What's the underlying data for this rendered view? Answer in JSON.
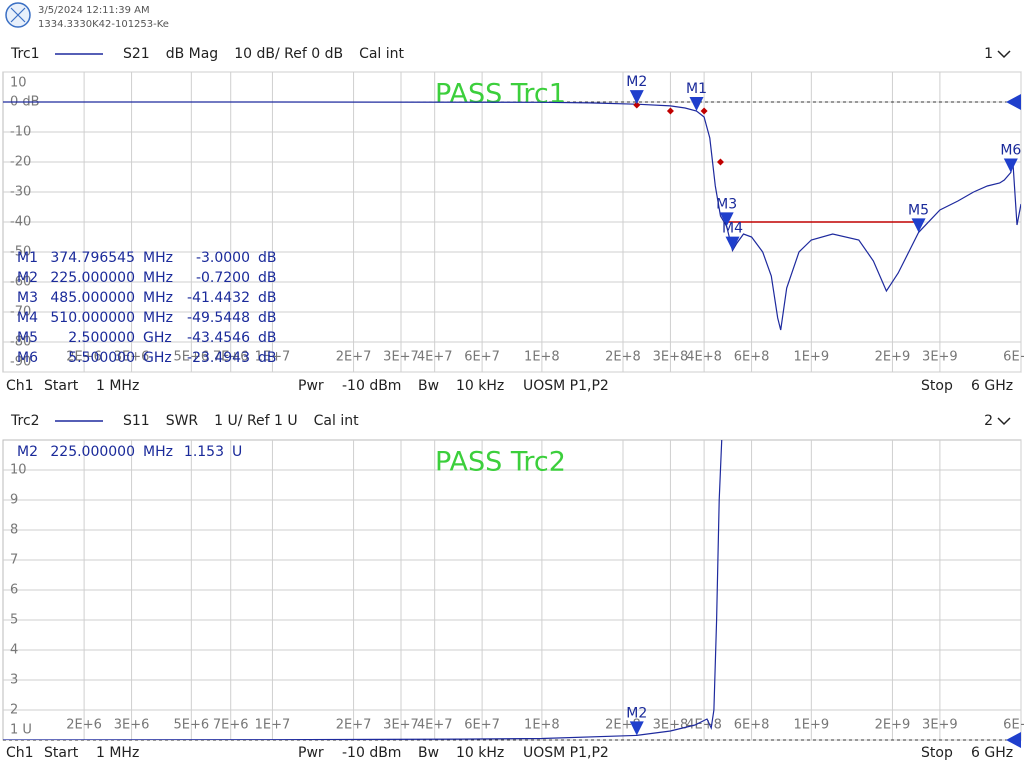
{
  "header": {
    "date": "3/5/2024 12:11:39 AM",
    "serial": "1334.3330K42-101253-Ke"
  },
  "chart_data": [
    {
      "type": "line",
      "parameter": "S21",
      "format": "dB Mag",
      "scale": "10 dB/ Ref 0 dB",
      "cal": "Cal int",
      "window": "1",
      "pass_label": "PASS  Trc1",
      "log_x": true,
      "grid": true,
      "ref_value": 0,
      "xlim": [
        1000000,
        6000000000
      ],
      "xticks": [
        {
          "value": 2000000,
          "label": "2E+6"
        },
        {
          "value": 3000000,
          "label": "3E+6"
        },
        {
          "value": 5000000,
          "label": "5E+6"
        },
        {
          "value": 7000000,
          "label": "7E+6"
        },
        {
          "value": 10000000,
          "label": "1E+7"
        },
        {
          "value": 20000000,
          "label": "2E+7"
        },
        {
          "value": 30000000,
          "label": "3E+7"
        },
        {
          "value": 40000000,
          "label": "4E+7"
        },
        {
          "value": 60000000,
          "label": "6E+7"
        },
        {
          "value": 100000000,
          "label": "1E+8"
        },
        {
          "value": 200000000,
          "label": "2E+8"
        },
        {
          "value": 300000000,
          "label": "3E+8"
        },
        {
          "value": 400000000,
          "label": "4E+8"
        },
        {
          "value": 600000000,
          "label": "6E+8"
        },
        {
          "value": 1000000000,
          "label": "1E+9"
        },
        {
          "value": 2000000000,
          "label": "2E+9"
        },
        {
          "value": 3000000000,
          "label": "3E+9"
        },
        {
          "value": 6000000000,
          "label": "6E+9"
        }
      ],
      "ylim": [
        -90,
        10
      ],
      "yticks": [
        10,
        {
          "value": 0,
          "label": "0 dB"
        },
        -10,
        -20,
        -30,
        -40,
        -50,
        -60,
        -70,
        -80,
        -90
      ],
      "series": [
        {
          "name": "Trc1",
          "color": "#1e2a9e",
          "x": [
            1000000,
            10000000,
            100000000,
            150000000,
            225000000,
            300000000,
            340000000,
            374796545,
            400000000,
            420000000,
            440000000,
            460000000,
            485000000,
            510000000,
            530000000,
            560000000,
            600000000,
            660000000,
            710000000,
            750000000,
            770000000,
            810000000,
            900000000,
            1000000000,
            1200000000,
            1500000000,
            1700000000,
            1900000000,
            2100000000,
            2500000000,
            3000000000,
            3500000000,
            4000000000,
            4500000000,
            5000000000,
            5200000000,
            5500000000,
            5600000000,
            5800000000,
            6000000000
          ],
          "values": [
            0,
            0,
            -0.1,
            -0.3,
            -0.72,
            -1.3,
            -2,
            -3,
            -5,
            -12,
            -28,
            -38,
            -41.44,
            -49.54,
            -47,
            -44,
            -45,
            -50,
            -58,
            -72,
            -76,
            -62,
            -50,
            -46,
            -44,
            -46,
            -53,
            -63,
            -57,
            -43.45,
            -36,
            -33,
            -30,
            -28,
            -27,
            -26,
            -23.49,
            -20,
            -41,
            -34
          ]
        }
      ],
      "limit_line": {
        "color": "#c00000",
        "x": [
          485000000,
          2500000000
        ],
        "values": [
          -40,
          -40
        ]
      },
      "limit_points": {
        "color": "#c00000",
        "x": [
          225000000,
          300000000,
          400000000,
          460000000
        ],
        "values": [
          -1,
          -3,
          -3,
          -20
        ]
      },
      "markers": [
        {
          "label": "M1",
          "x": 374796545,
          "y": -3
        },
        {
          "label": "M2",
          "x": 225000000,
          "y": -0.72
        },
        {
          "label": "M3",
          "x": 485000000,
          "y": -41.4432
        },
        {
          "label": "M4",
          "x": 510000000,
          "y": -49.5448
        },
        {
          "label": "M5",
          "x": 2500000000,
          "y": -43.4546
        },
        {
          "label": "M6",
          "x": 5500000000,
          "y": -23.4943
        }
      ],
      "marker_table": [
        [
          "M1",
          "374.796545",
          "MHz",
          "-3.0000",
          "dB"
        ],
        [
          "M2",
          "225.000000",
          "MHz",
          "-0.7200",
          "dB"
        ],
        [
          "M3",
          "485.000000",
          "MHz",
          "-41.4432",
          "dB"
        ],
        [
          "M4",
          "510.000000",
          "MHz",
          "-49.5448",
          "dB"
        ],
        [
          "M5",
          "2.500000",
          "GHz",
          "-43.4546",
          "dB"
        ],
        [
          "M6",
          "5.500000",
          "GHz",
          "-23.4943",
          "dB"
        ]
      ],
      "status": [
        "Ch1",
        "Start",
        "1 MHz",
        "Pwr",
        "-10 dBm",
        "Bw",
        "10 kHz",
        "UOSM P1,P2",
        "Stop",
        "6 GHz"
      ]
    },
    {
      "type": "line",
      "parameter": "S11",
      "format": "SWR",
      "scale": "1 U/ Ref 1 U",
      "cal": "Cal int",
      "window": "2",
      "pass_label": "PASS  Trc2",
      "log_x": true,
      "grid": true,
      "ref_value": 1,
      "xlim": [
        1000000,
        6000000000
      ],
      "xticks": [
        {
          "value": 2000000,
          "label": "2E+6"
        },
        {
          "value": 3000000,
          "label": "3E+6"
        },
        {
          "value": 5000000,
          "label": "5E+6"
        },
        {
          "value": 7000000,
          "label": "7E+6"
        },
        {
          "value": 10000000,
          "label": "1E+7"
        },
        {
          "value": 20000000,
          "label": "2E+7"
        },
        {
          "value": 30000000,
          "label": "3E+7"
        },
        {
          "value": 40000000,
          "label": "4E+7"
        },
        {
          "value": 60000000,
          "label": "6E+7"
        },
        {
          "value": 100000000,
          "label": "1E+8"
        },
        {
          "value": 200000000,
          "label": "2E+8"
        },
        {
          "value": 300000000,
          "label": "3E+8"
        },
        {
          "value": 400000000,
          "label": "4E+8"
        },
        {
          "value": 600000000,
          "label": "6E+8"
        },
        {
          "value": 1000000000,
          "label": "1E+9"
        },
        {
          "value": 2000000000,
          "label": "2E+9"
        },
        {
          "value": 3000000000,
          "label": "3E+9"
        },
        {
          "value": 6000000000,
          "label": "6E+9"
        }
      ],
      "ylim": [
        1,
        11
      ],
      "yticks": [
        10,
        9,
        8,
        7,
        6,
        5,
        4,
        3,
        2,
        {
          "value": 1,
          "label": "1 U"
        }
      ],
      "series": [
        {
          "name": "Trc2",
          "color": "#1e2a9e",
          "x": [
            1000000,
            10000000,
            50000000,
            100000000,
            225000000,
            300000000,
            370000000,
            410000000,
            425000000,
            435000000,
            445000000,
            455000000,
            470000000
          ],
          "values": [
            1,
            1.01,
            1.03,
            1.05,
            1.153,
            1.3,
            1.5,
            1.7,
            1.4,
            2,
            5,
            9,
            12
          ]
        }
      ],
      "markers": [
        {
          "label": "M2",
          "x": 225000000,
          "y": 1.153
        }
      ],
      "marker_table": [
        [
          "M2",
          "225.000000",
          "MHz",
          "1.153",
          "U"
        ]
      ],
      "status": [
        "Ch1",
        "Start",
        "1 MHz",
        "Pwr",
        "-10 dBm",
        "Bw",
        "10 kHz",
        "UOSM P1,P2",
        "Stop",
        "6 GHz"
      ]
    }
  ]
}
